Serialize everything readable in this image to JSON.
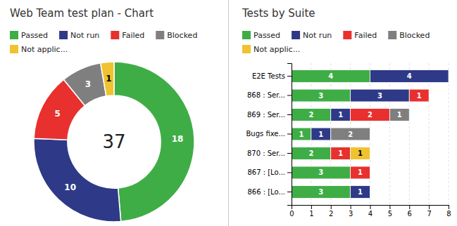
{
  "chart_data": [
    {
      "type": "donut",
      "title": "Web Team test plan - Chart",
      "categories": [
        "Passed",
        "Not run",
        "Failed",
        "Blocked",
        "Not applic..."
      ],
      "values": [
        18,
        10,
        5,
        3,
        1
      ],
      "colors": [
        "#3fad46",
        "#2e3a87",
        "#e8302e",
        "#7f7f7f",
        "#f0c230"
      ],
      "annotations": [
        "37"
      ],
      "data_labels": true,
      "legend": "top"
    },
    {
      "type": "bar",
      "title": "Tests by Suite",
      "orientation": "horizontal",
      "stacked": true,
      "categories": [
        "E2E Tests",
        "868 : Ser...",
        "869 : Ser...",
        "Bugs fixe...",
        "870 : Ser...",
        "867 : [Lo...",
        "866 : [Lo..."
      ],
      "series": [
        {
          "name": "Passed",
          "color": "#3fad46",
          "values": [
            4,
            3,
            2,
            1,
            2,
            3,
            3
          ]
        },
        {
          "name": "Not run",
          "color": "#2e3a87",
          "values": [
            4,
            3,
            1,
            1,
            0,
            0,
            1
          ]
        },
        {
          "name": "Failed",
          "color": "#e8302e",
          "values": [
            0,
            1,
            2,
            0,
            1,
            1,
            0
          ]
        },
        {
          "name": "Blocked",
          "color": "#7f7f7f",
          "values": [
            0,
            0,
            1,
            2,
            0,
            0,
            0
          ]
        },
        {
          "name": "Not applic...",
          "color": "#f0c230",
          "values": [
            0,
            0,
            0,
            0,
            1,
            0,
            0
          ]
        }
      ],
      "xlim": [
        0,
        8
      ],
      "xticks": [
        0,
        1,
        2,
        3,
        4,
        5,
        6,
        7,
        8
      ],
      "grid": true,
      "data_labels": true,
      "legend": "top"
    }
  ]
}
